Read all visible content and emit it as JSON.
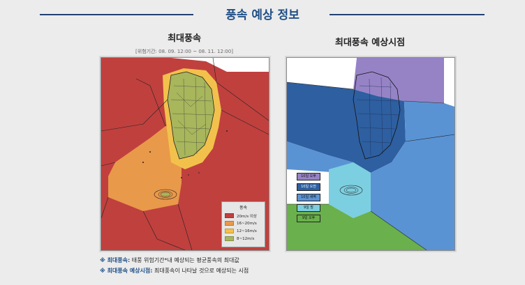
{
  "header": {
    "title": "풍속 예상 정보"
  },
  "panel_left": {
    "title": "최대풍속",
    "period": "[위험기간: 08. 09. 12:00 ~ 08. 11. 12:00]",
    "legend": {
      "title": "풍속",
      "items": [
        {
          "label": "20m/s 이상",
          "color": "#c0403e"
        },
        {
          "label": "16~20m/s",
          "color": "#e9994a"
        },
        {
          "label": "12~16m/s",
          "color": "#f2c14c"
        },
        {
          "label": "8~12m/s",
          "color": "#a8b65c"
        }
      ]
    }
  },
  "panel_right": {
    "title": "최대풍속 예상시점",
    "legend": {
      "items": [
        {
          "label": "10일 오후",
          "color": "#9683c6"
        },
        {
          "label": "10일 오전",
          "color": "#2e5fa0"
        },
        {
          "label": "10일 새벽",
          "color": "#5a93d3"
        },
        {
          "label": "9일 밤",
          "color": "#7ccfe0"
        },
        {
          "label": "9일 오후",
          "color": "#6ab04c"
        }
      ]
    }
  },
  "notes": {
    "n1_key": "※ 최대풍속:",
    "n1_text": " 태풍 위험기간*내 예상되는 평균풍속의 최대값",
    "n2_key": "※ 최대풍속 예상시점:",
    "n2_text": " 최대풍속이 나타날 것으로 예상되는 시점"
  }
}
